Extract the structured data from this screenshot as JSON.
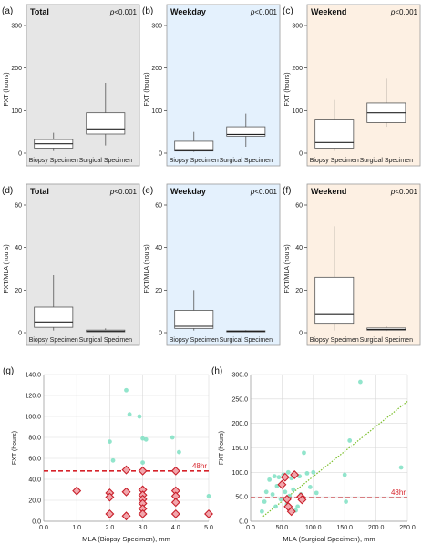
{
  "colors": {
    "total_bg": "#e6e6e6",
    "weekday_bg": "#e4f1fd",
    "weekend_bg": "#fdf0e3",
    "box_fill": "#ffffff",
    "box_edge": "#555555",
    "scatter_point": "#7fe0c3",
    "diamond_fill": "#f2a6ac",
    "diamond_edge": "#c8202b",
    "threshold": "#d6232a",
    "fit_line": "#7bbf2a"
  },
  "chart_data": [
    {
      "type": "box",
      "id": "a",
      "panel_label": "(a)",
      "title": "Total",
      "pvalue": "p<0.001",
      "ylabel": "FXT (hours)",
      "ylim": [
        0,
        300
      ],
      "yticks": [
        0,
        100,
        200,
        300
      ],
      "categories": [
        "Biopsy Specimen",
        "Surgical Specimen"
      ],
      "boxes": [
        {
          "whisker_low": 5,
          "q1": 12,
          "median": 22,
          "q3": 32,
          "whisker_high": 48
        },
        {
          "whisker_low": 18,
          "q1": 45,
          "median": 55,
          "q3": 95,
          "whisker_high": 165
        }
      ]
    },
    {
      "type": "box",
      "id": "b",
      "panel_label": "(b)",
      "title": "Weekday",
      "pvalue": "p<0.001",
      "ylabel": "FXT (hours)",
      "ylim": [
        0,
        300
      ],
      "yticks": [
        0,
        100,
        200,
        300
      ],
      "categories": [
        "Biopsy Specimen",
        "Surgical Specimen"
      ],
      "boxes": [
        {
          "whisker_low": 3,
          "q1": 5,
          "median": 6,
          "q3": 28,
          "whisker_high": 50
        },
        {
          "whisker_low": 15,
          "q1": 40,
          "median": 44,
          "q3": 62,
          "whisker_high": 93
        }
      ]
    },
    {
      "type": "box",
      "id": "c",
      "panel_label": "(c)",
      "title": "Weekend",
      "pvalue": "p<0.001",
      "ylabel": "FXT (hours)",
      "ylim": [
        0,
        300
      ],
      "yticks": [
        0,
        100,
        200,
        300
      ],
      "categories": [
        "Biopsy Specimen",
        "Surgical Specimen"
      ],
      "boxes": [
        {
          "whisker_low": 5,
          "q1": 12,
          "median": 25,
          "q3": 78,
          "whisker_high": 125
        },
        {
          "whisker_low": 62,
          "q1": 72,
          "median": 95,
          "q3": 118,
          "whisker_high": 175
        }
      ]
    },
    {
      "type": "box",
      "id": "d",
      "panel_label": "(d)",
      "title": "Total",
      "pvalue": "p<0.001",
      "ylabel": "FXT/MLA (hours)",
      "ylim": [
        0,
        60
      ],
      "yticks": [
        0,
        20,
        40,
        60
      ],
      "categories": [
        "Biopsy Specimen",
        "Surgical Specimen"
      ],
      "boxes": [
        {
          "whisker_low": 1,
          "q1": 2.5,
          "median": 5,
          "q3": 12,
          "whisker_high": 27
        },
        {
          "whisker_low": 0.2,
          "q1": 0.4,
          "median": 0.7,
          "q3": 1.2,
          "whisker_high": 2
        }
      ]
    },
    {
      "type": "box",
      "id": "e",
      "panel_label": "(e)",
      "title": "Weekday",
      "pvalue": "p<0.001",
      "ylabel": "FXT/MLA (hours)",
      "ylim": [
        0,
        60
      ],
      "yticks": [
        0,
        20,
        40,
        60
      ],
      "categories": [
        "Biopsy Specimen",
        "Surgical Specimen"
      ],
      "boxes": [
        {
          "whisker_low": 1,
          "q1": 2,
          "median": 3,
          "q3": 10.5,
          "whisker_high": 20
        },
        {
          "whisker_low": 0.2,
          "q1": 0.4,
          "median": 0.6,
          "q3": 0.9,
          "whisker_high": 1.2
        }
      ]
    },
    {
      "type": "box",
      "id": "f",
      "panel_label": "(f)",
      "title": "Weekend",
      "pvalue": "p<0.001",
      "ylabel": "FXT/MLA (hours)",
      "ylim": [
        0,
        60
      ],
      "yticks": [
        0,
        20,
        40,
        60
      ],
      "categories": [
        "Biopsy Specimen",
        "Surgical Specimen"
      ],
      "boxes": [
        {
          "whisker_low": 1,
          "q1": 4,
          "median": 8.5,
          "q3": 26,
          "whisker_high": 50
        },
        {
          "whisker_low": 0.8,
          "q1": 1.2,
          "median": 1.5,
          "q3": 2.2,
          "whisker_high": 3
        }
      ]
    },
    {
      "type": "scatter",
      "id": "g",
      "panel_label": "(g)",
      "xlabel": "MLA (Biopsy Specimen), mm",
      "ylabel": "FXT (hours)",
      "xlim": [
        0,
        5
      ],
      "ylim": [
        0,
        140
      ],
      "xticks": [
        "0.0",
        "1.0",
        "2.0",
        "3.0",
        "4.0",
        "5.0"
      ],
      "yticks": [
        "0.0",
        "20.0",
        "40.0",
        "60.0",
        "80.0",
        "100.0",
        "120.0",
        "140.0"
      ],
      "threshold": 48,
      "threshold_label": "48hr",
      "points": [
        {
          "x": 2.0,
          "y": 76
        },
        {
          "x": 2.1,
          "y": 58
        },
        {
          "x": 2.5,
          "y": 125
        },
        {
          "x": 2.6,
          "y": 102
        },
        {
          "x": 2.9,
          "y": 100
        },
        {
          "x": 3.0,
          "y": 79
        },
        {
          "x": 3.1,
          "y": 78
        },
        {
          "x": 3.0,
          "y": 56
        },
        {
          "x": 3.9,
          "y": 80
        },
        {
          "x": 4.1,
          "y": 66
        },
        {
          "x": 5.0,
          "y": 24
        }
      ],
      "highlighted": [
        {
          "x": 1.0,
          "y": 29
        },
        {
          "x": 2.0,
          "y": 27
        },
        {
          "x": 2.0,
          "y": 23
        },
        {
          "x": 2.0,
          "y": 7
        },
        {
          "x": 2.5,
          "y": 49
        },
        {
          "x": 2.5,
          "y": 28
        },
        {
          "x": 2.5,
          "y": 5
        },
        {
          "x": 3.0,
          "y": 48
        },
        {
          "x": 3.0,
          "y": 30
        },
        {
          "x": 3.0,
          "y": 25
        },
        {
          "x": 3.0,
          "y": 21
        },
        {
          "x": 3.0,
          "y": 17
        },
        {
          "x": 3.0,
          "y": 12
        },
        {
          "x": 3.0,
          "y": 7
        },
        {
          "x": 4.0,
          "y": 48
        },
        {
          "x": 4.0,
          "y": 29
        },
        {
          "x": 4.0,
          "y": 24
        },
        {
          "x": 4.0,
          "y": 18
        },
        {
          "x": 4.0,
          "y": 7
        },
        {
          "x": 5.0,
          "y": 7
        }
      ]
    },
    {
      "type": "scatter",
      "id": "h",
      "panel_label": "(h)",
      "xlabel": "MLA (Surgical Specimen), mm",
      "ylabel": "FXT (hours)",
      "xlim": [
        0,
        250
      ],
      "ylim": [
        0,
        300
      ],
      "xticks": [
        "0.0",
        "50.0",
        "100.0",
        "150.0",
        "200.0",
        "250.0"
      ],
      "yticks": [
        "0.0",
        "50.0",
        "100.0",
        "150.0",
        "200.0",
        "250.0",
        "300.0"
      ],
      "threshold": 48,
      "threshold_label": "48hr",
      "fit_line": {
        "x1": 20,
        "y1": 10,
        "x2": 250,
        "y2": 245
      },
      "points": [
        {
          "x": 18,
          "y": 20
        },
        {
          "x": 22,
          "y": 40
        },
        {
          "x": 25,
          "y": 60
        },
        {
          "x": 30,
          "y": 85
        },
        {
          "x": 35,
          "y": 55
        },
        {
          "x": 38,
          "y": 92
        },
        {
          "x": 40,
          "y": 30
        },
        {
          "x": 42,
          "y": 72
        },
        {
          "x": 45,
          "y": 90
        },
        {
          "x": 48,
          "y": 45
        },
        {
          "x": 50,
          "y": 78
        },
        {
          "x": 52,
          "y": 95
        },
        {
          "x": 55,
          "y": 60
        },
        {
          "x": 58,
          "y": 35
        },
        {
          "x": 60,
          "y": 100
        },
        {
          "x": 62,
          "y": 52
        },
        {
          "x": 65,
          "y": 88
        },
        {
          "x": 68,
          "y": 65
        },
        {
          "x": 70,
          "y": 98
        },
        {
          "x": 72,
          "y": 22
        },
        {
          "x": 75,
          "y": 30
        },
        {
          "x": 78,
          "y": 92
        },
        {
          "x": 80,
          "y": 55
        },
        {
          "x": 85,
          "y": 140
        },
        {
          "x": 90,
          "y": 98
        },
        {
          "x": 95,
          "y": 70
        },
        {
          "x": 100,
          "y": 100
        },
        {
          "x": 105,
          "y": 58
        },
        {
          "x": 150,
          "y": 95
        },
        {
          "x": 152,
          "y": 40
        },
        {
          "x": 158,
          "y": 165
        },
        {
          "x": 175,
          "y": 285
        },
        {
          "x": 240,
          "y": 110
        }
      ],
      "highlighted": [
        {
          "x": 50,
          "y": 75
        },
        {
          "x": 55,
          "y": 90
        },
        {
          "x": 58,
          "y": 45
        },
        {
          "x": 60,
          "y": 30
        },
        {
          "x": 65,
          "y": 20
        },
        {
          "x": 70,
          "y": 95
        },
        {
          "x": 80,
          "y": 50
        },
        {
          "x": 82,
          "y": 44
        }
      ]
    }
  ]
}
